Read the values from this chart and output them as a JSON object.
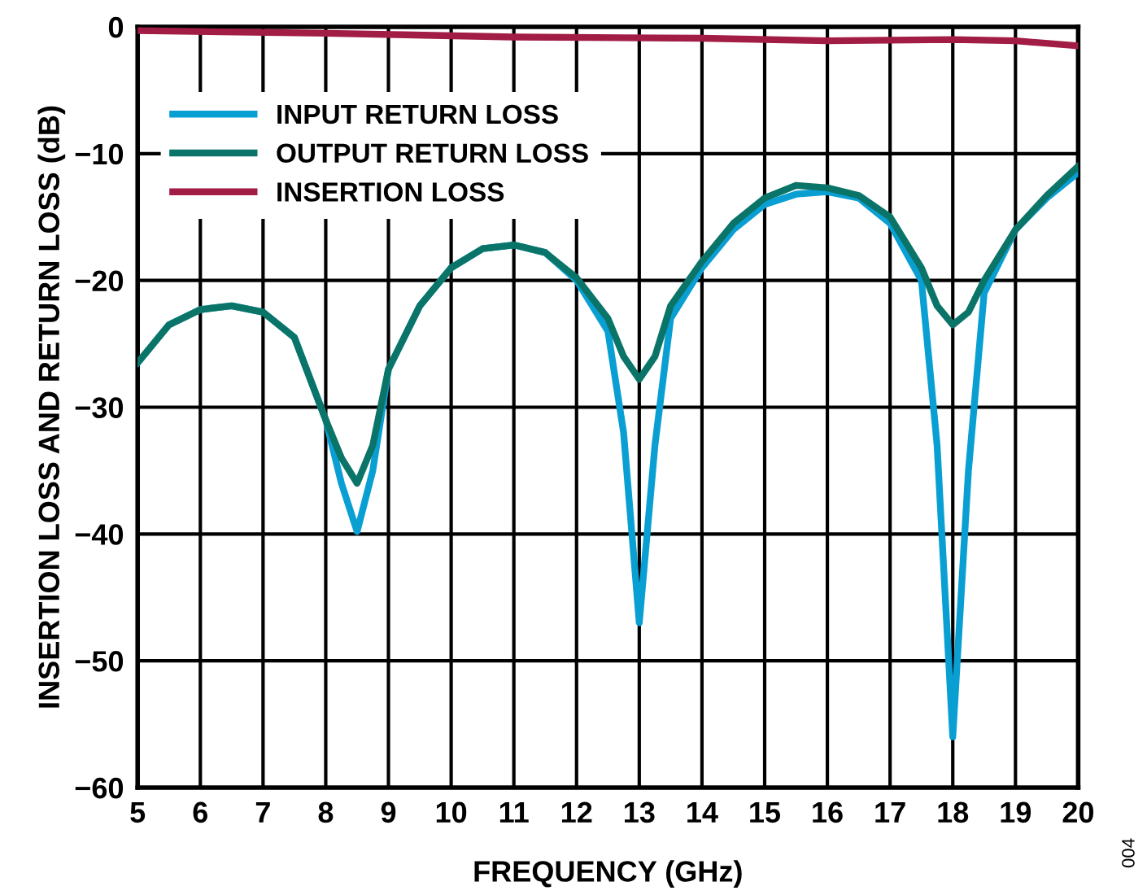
{
  "chart_data": {
    "type": "line",
    "xlabel": "FREQUENCY (GHz)",
    "ylabel": "INSERTION LOSS AND RETURN LOSS (dB)",
    "xlim": [
      5,
      20
    ],
    "xticks": [
      5,
      6,
      7,
      8,
      9,
      10,
      11,
      12,
      13,
      14,
      15,
      16,
      17,
      18,
      19,
      20
    ],
    "ylim": [
      -60,
      0
    ],
    "yticks": [
      -60,
      -50,
      -40,
      -30,
      -20,
      -10,
      0
    ],
    "grid": true,
    "legend": "top left",
    "marker": "none",
    "line_style": "solid",
    "annotations": [
      "004"
    ],
    "series": [
      {
        "name": "INPUT RETURN LOSS",
        "color": "#0a9fd3",
        "x": [
          5,
          5.5,
          6,
          6.5,
          7,
          7.5,
          8,
          8.25,
          8.5,
          8.75,
          9,
          9.5,
          10,
          10.5,
          11,
          11.5,
          12,
          12.5,
          12.75,
          13,
          13.25,
          13.5,
          14,
          14.5,
          15,
          15.5,
          16,
          16.5,
          17,
          17.5,
          17.75,
          18,
          18.25,
          18.5,
          19,
          19.5,
          20
        ],
        "values": [
          -26.5,
          -23.5,
          -22.3,
          -22,
          -22.5,
          -24.5,
          -31,
          -36,
          -39.8,
          -35,
          -27,
          -22,
          -19,
          -17.5,
          -17.2,
          -17.8,
          -20,
          -24,
          -32,
          -47,
          -33,
          -23,
          -19,
          -16,
          -14,
          -13.2,
          -13,
          -13.5,
          -15.5,
          -20,
          -33,
          -56,
          -35,
          -21,
          -16,
          -13.5,
          -11.5
        ]
      },
      {
        "name": "OUTPUT RETURN LOSS",
        "color": "#0b7468",
        "x": [
          5,
          5.5,
          6,
          6.5,
          7,
          7.5,
          8,
          8.25,
          8.5,
          8.75,
          9,
          9.5,
          10,
          10.5,
          11,
          11.5,
          12,
          12.5,
          12.75,
          13,
          13.25,
          13.5,
          14,
          14.5,
          15,
          15.5,
          16,
          16.5,
          17,
          17.5,
          17.75,
          18,
          18.25,
          18.5,
          19,
          19.5,
          20
        ],
        "values": [
          -26.5,
          -23.5,
          -22.3,
          -22,
          -22.5,
          -24.5,
          -31,
          -34,
          -36,
          -33,
          -27,
          -22,
          -19,
          -17.5,
          -17.2,
          -17.8,
          -19.8,
          -23,
          -26,
          -27.8,
          -26,
          -22,
          -18.5,
          -15.5,
          -13.5,
          -12.5,
          -12.7,
          -13.3,
          -15,
          -19,
          -22,
          -23.5,
          -22.5,
          -20,
          -16,
          -13.3,
          -11
        ]
      },
      {
        "name": "INSERTION LOSS",
        "color": "#a21d45",
        "x": [
          5,
          8,
          11,
          14,
          16,
          18,
          19,
          20
        ],
        "values": [
          -0.3,
          -0.5,
          -0.8,
          -0.9,
          -1.1,
          -1.0,
          -1.1,
          -1.5
        ]
      }
    ]
  }
}
